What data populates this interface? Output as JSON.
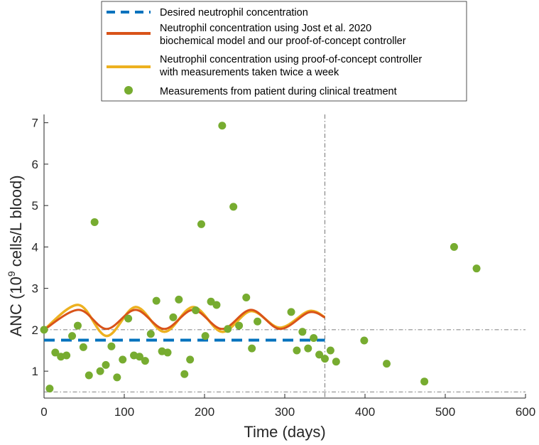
{
  "chart_data": {
    "type": "line",
    "xlabel": "Time (days)",
    "ylabel_prefix": "ANC (10",
    "ylabel_sup": "9",
    "ylabel_suffix": " cells/L blood)",
    "xlim": [
      0,
      600
    ],
    "ylim": [
      0.35,
      7.2
    ],
    "xticks": [
      0,
      100,
      200,
      300,
      400,
      500,
      600
    ],
    "yticks": [
      1,
      2,
      3,
      4,
      5,
      6,
      7
    ],
    "grid": false,
    "legend_position": "top",
    "reference_lines": {
      "horizontal": [
        2.0,
        0.5
      ],
      "vertical": [
        350
      ]
    },
    "series": [
      {
        "name": "Desired neutrophil concentration",
        "style": "dashed",
        "color": "#0072BD",
        "x": [
          0,
          350
        ],
        "y": [
          1.75,
          1.75
        ]
      },
      {
        "name": "Neutrophil concentration using Jost et al. 2020 biochemical model and our proof-of-concept controller",
        "legend_lines": [
          "Neutrophil concentration using Jost et al. 2020",
          "biochemical model and our proof-of-concept controller"
        ],
        "style": "solid",
        "color": "#D95319",
        "x": [
          0,
          43,
          78,
          114,
          150,
          186,
          222,
          258,
          294,
          330,
          350
        ],
        "y": [
          2.0,
          2.48,
          2.02,
          2.48,
          2.02,
          2.48,
          2.02,
          2.48,
          2.02,
          2.42,
          2.3
        ]
      },
      {
        "name": "Neutrophil concentration using proof-of-concept controller with measurements taken twice a week",
        "legend_lines": [
          "Neutrophil concentration using proof-of-concept controller",
          "with measurements taken twice a week"
        ],
        "style": "solid",
        "color": "#EDB120",
        "x": [
          0,
          43,
          78,
          114,
          150,
          186,
          222,
          258,
          294,
          330,
          350
        ],
        "y": [
          2.0,
          2.6,
          1.85,
          2.55,
          1.95,
          2.55,
          1.95,
          2.45,
          2.05,
          2.45,
          2.3
        ]
      },
      {
        "name": "Measurements from patient during clinical treatment",
        "style": "markers",
        "color": "#77AC30",
        "points": [
          [
            0,
            2.0
          ],
          [
            7,
            0.58
          ],
          [
            14,
            1.45
          ],
          [
            21,
            1.35
          ],
          [
            28,
            1.38
          ],
          [
            35,
            1.85
          ],
          [
            42,
            2.1
          ],
          [
            49,
            1.58
          ],
          [
            56,
            0.9
          ],
          [
            63,
            4.6
          ],
          [
            70,
            1.0
          ],
          [
            77,
            1.15
          ],
          [
            84,
            1.6
          ],
          [
            91,
            0.85
          ],
          [
            98,
            1.28
          ],
          [
            105,
            2.27
          ],
          [
            112,
            1.38
          ],
          [
            119,
            1.35
          ],
          [
            126,
            1.25
          ],
          [
            133,
            1.9
          ],
          [
            140,
            2.7
          ],
          [
            147,
            1.48
          ],
          [
            154,
            1.45
          ],
          [
            161,
            2.3
          ],
          [
            168,
            2.73
          ],
          [
            175,
            0.93
          ],
          [
            182,
            1.28
          ],
          [
            189,
            2.47
          ],
          [
            196,
            4.55
          ],
          [
            201,
            1.85
          ],
          [
            208,
            2.68
          ],
          [
            215,
            2.6
          ],
          [
            222,
            6.93
          ],
          [
            229,
            2.02
          ],
          [
            236,
            4.97
          ],
          [
            243,
            2.1
          ],
          [
            252,
            2.78
          ],
          [
            259,
            1.55
          ],
          [
            266,
            2.2
          ],
          [
            308,
            2.43
          ],
          [
            315,
            1.5
          ],
          [
            322,
            1.95
          ],
          [
            329,
            1.55
          ],
          [
            336,
            1.8
          ],
          [
            343,
            1.4
          ],
          [
            350,
            1.3
          ],
          [
            357,
            1.5
          ],
          [
            364,
            1.23
          ],
          [
            399,
            1.74
          ],
          [
            427,
            1.18
          ],
          [
            474,
            0.75
          ],
          [
            511,
            4.0
          ],
          [
            539,
            3.48
          ]
        ]
      }
    ]
  }
}
